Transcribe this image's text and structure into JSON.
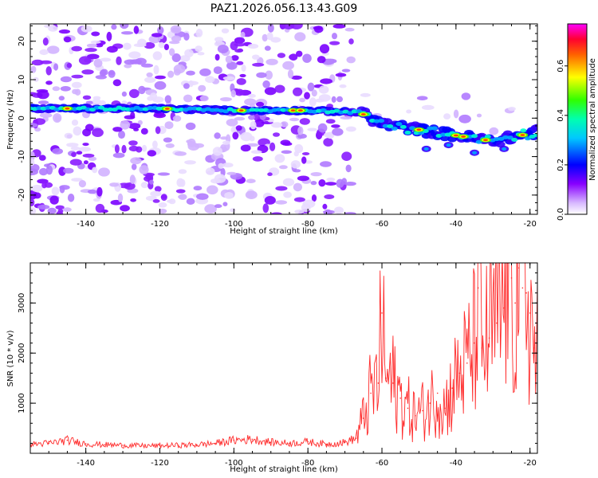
{
  "figure_title": "PAZ1.2026.056.13.43.G09",
  "chart_data": [
    {
      "type": "heatmap",
      "title": "PAZ1.2026.056.13.43.G09",
      "xlabel": "Height of straight line (km)",
      "ylabel": "Frequency (Hz)",
      "xlim": [
        -155,
        -18
      ],
      "ylim": [
        -25,
        24.5
      ],
      "x_ticks": [
        -140,
        -120,
        -100,
        -80,
        -60,
        -40,
        -20
      ],
      "y_ticks": [
        -20,
        -10,
        0,
        10,
        20
      ],
      "colorbar": {
        "label": "Normalized spectral amplitude",
        "range": [
          0.0,
          0.77
        ],
        "ticks": [
          0.0,
          0.2,
          0.4,
          0.6
        ],
        "colors": [
          "#ffffff",
          "#c8a0ff",
          "#8800ff",
          "#0000ff",
          "#00ffff",
          "#00ff00",
          "#ffff00",
          "#ff0000",
          "#ff00ff"
        ]
      },
      "ridge": {
        "description": "dominant frequency track",
        "x": [
          -155,
          -140,
          -120,
          -100,
          -80,
          -66,
          -60,
          -50,
          -40,
          -30,
          -20,
          -18
        ],
        "y": [
          2.5,
          2.5,
          2.5,
          2,
          2,
          1.5,
          -1.5,
          -3,
          -4.5,
          -6,
          -4,
          -3.5
        ]
      }
    },
    {
      "type": "line",
      "xlabel": "Height of straight line (km)",
      "ylabel": "SNR (10 * v/v)",
      "xlim": [
        -155,
        -18
      ],
      "ylim": [
        0,
        3800
      ],
      "x_ticks": [
        -140,
        -120,
        -100,
        -80,
        -60,
        -40,
        -20
      ],
      "y_ticks": [
        1000,
        2000,
        3000
      ],
      "series": [
        {
          "name": "SNR",
          "color": "#ff2a2a",
          "x": [
            -155,
            -150,
            -145,
            -140,
            -135,
            -130,
            -125,
            -120,
            -115,
            -110,
            -105,
            -100,
            -95,
            -90,
            -85,
            -80,
            -75,
            -70,
            -67,
            -65,
            -63,
            -61,
            -60,
            -59,
            -57,
            -55,
            -53,
            -51,
            -49,
            -47,
            -45,
            -43,
            -41,
            -39,
            -37,
            -35,
            -34,
            -33,
            -31,
            -29,
            -27,
            -26,
            -25,
            -24,
            -23,
            -22,
            -21,
            -20,
            -19,
            -18
          ],
          "y": [
            180,
            200,
            260,
            190,
            170,
            160,
            150,
            150,
            160,
            170,
            200,
            260,
            280,
            220,
            200,
            230,
            180,
            220,
            300,
            700,
            1200,
            1400,
            2800,
            1500,
            1400,
            1100,
            900,
            750,
            850,
            1000,
            1200,
            900,
            1300,
            1600,
            1800,
            2200,
            3300,
            2100,
            2300,
            2600,
            2900,
            3800,
            3500,
            3000,
            3700,
            3300,
            3200,
            2800,
            2100,
            2000
          ]
        }
      ]
    }
  ]
}
